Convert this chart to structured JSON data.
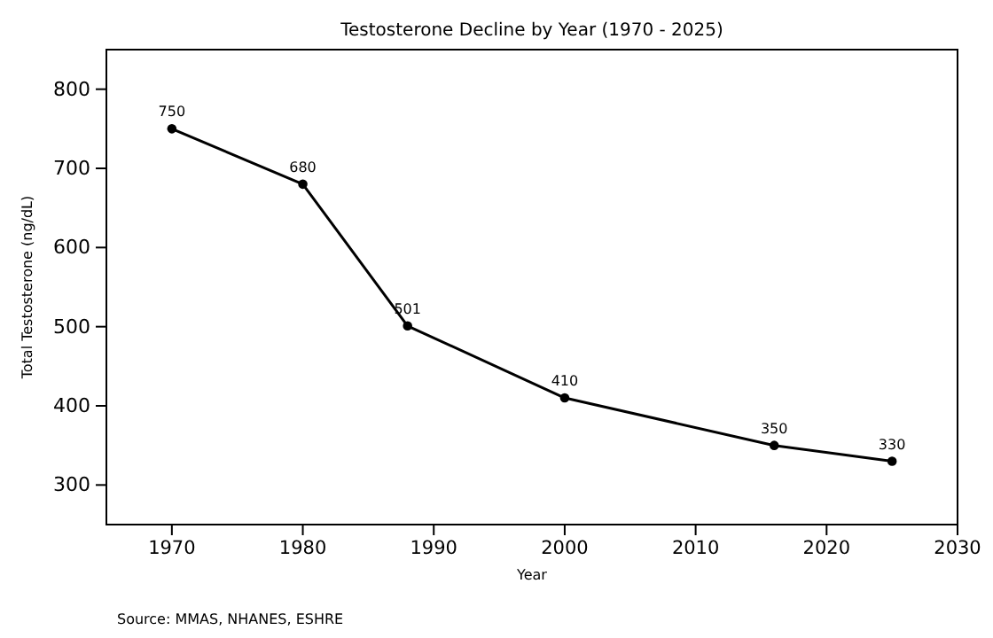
{
  "chart_data": {
    "type": "line",
    "title": "Testosterone Decline by Year (1970 - 2025)",
    "xlabel": "Year",
    "ylabel": "Total Testosterone (ng/dL)",
    "x": [
      1970,
      1980,
      1988,
      2000,
      2016,
      2025
    ],
    "series": [
      {
        "color": "#000000",
        "values": [
          750,
          680,
          501,
          410,
          350,
          330
        ]
      }
    ],
    "data_labels": true,
    "marker": "circle",
    "line_style": "solid",
    "grid": false,
    "xlim": [
      1965,
      2030
    ],
    "xticks": [
      1970,
      1980,
      1990,
      2000,
      2010,
      2020,
      2030
    ],
    "ylim": [
      250,
      850
    ],
    "yticks": [
      300,
      400,
      500,
      600,
      700,
      800
    ],
    "annotations": [
      "Source: MMAS, NHANES, ESHRE"
    ]
  }
}
